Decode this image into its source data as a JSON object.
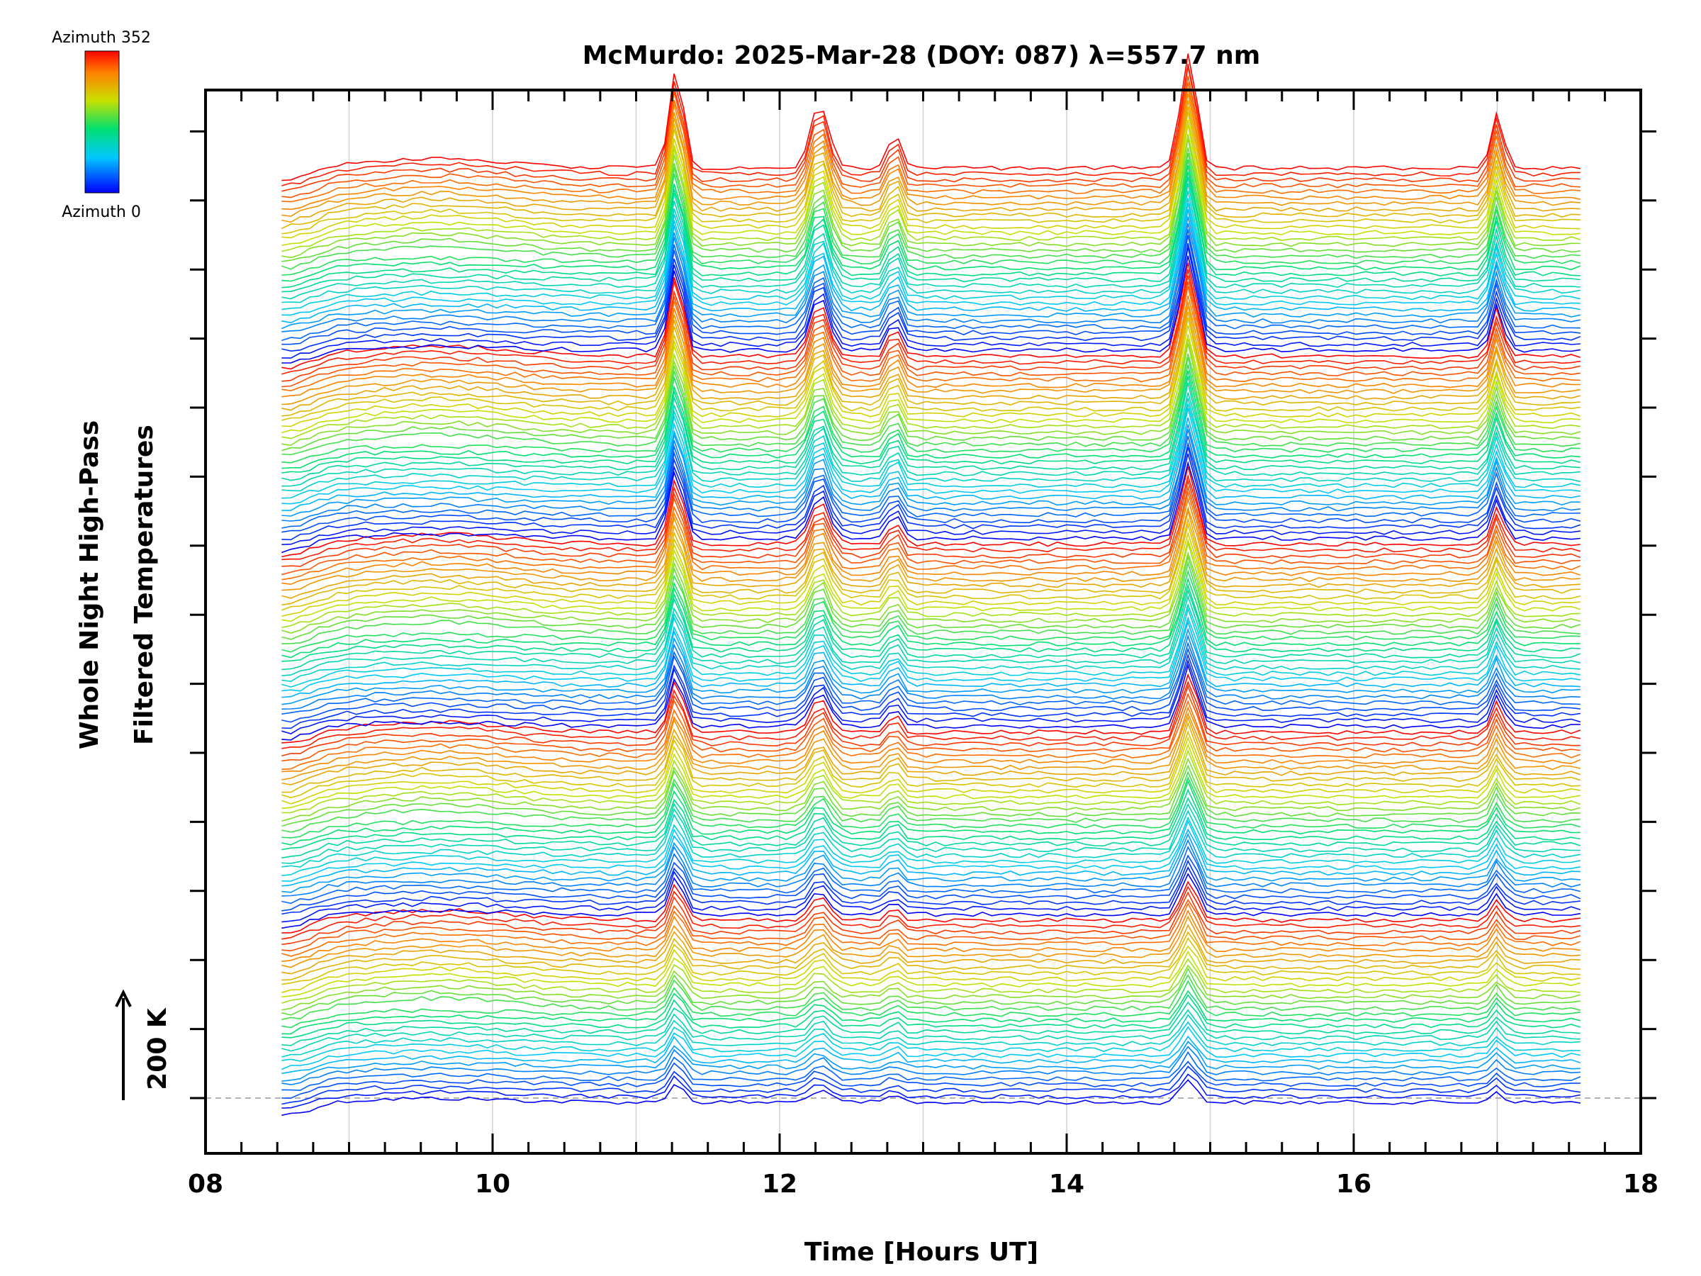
{
  "chart_data": {
    "type": "line",
    "title": "McMurdo: 2025-Mar-28 (DOY: 087) λ=557.7 nm",
    "xlabel": "Time [Hours UT]",
    "ylabel_line1": "Whole Night High-Pass",
    "ylabel_line2": "Filtered Temperatures",
    "scale_label": "200 K",
    "xlim": [
      8,
      18
    ],
    "x_ticks": [
      "08",
      "10",
      "12",
      "14",
      "16",
      "18"
    ],
    "x_data_range": [
      8.53,
      17.58
    ],
    "series_count": 160,
    "azimuth_range": [
      0,
      352
    ],
    "colorbar": {
      "top_label": "Azimuth 352",
      "bottom_label": "Azimuth 0",
      "colors": [
        "#0000ff",
        "#00c8ff",
        "#00e070",
        "#c8e000",
        "#ff8000",
        "#ff0000"
      ]
    },
    "grid": true,
    "events_hours": [
      11.28,
      12.28,
      12.8,
      14.85,
      17.0
    ]
  }
}
